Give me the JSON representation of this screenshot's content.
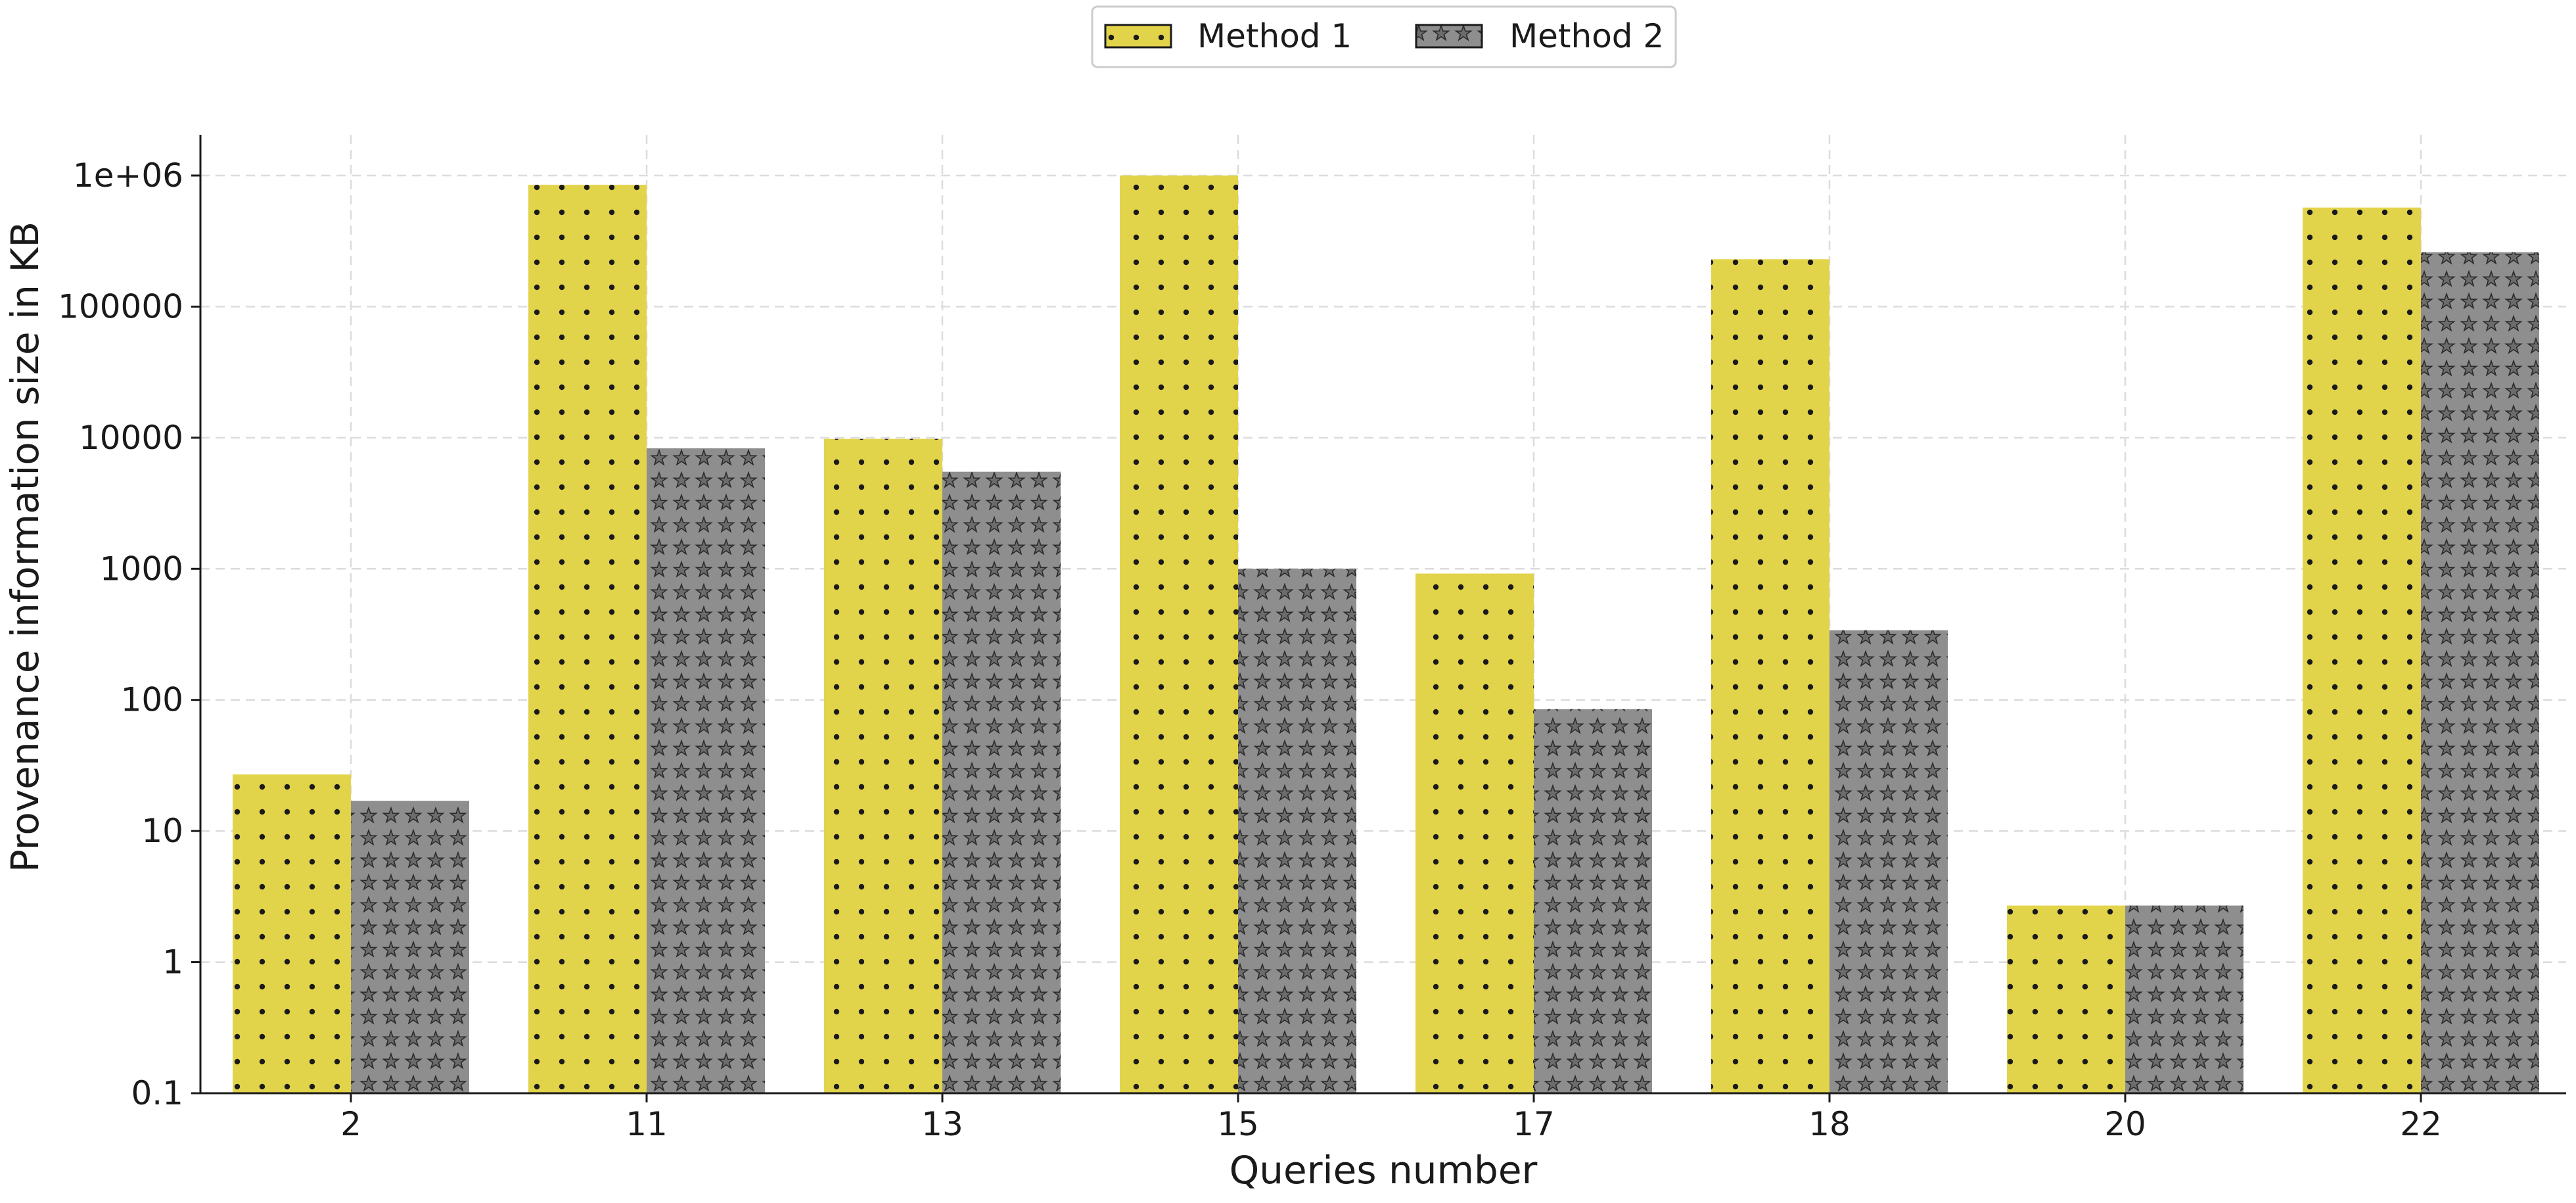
{
  "chart_data": {
    "type": "bar",
    "title": "",
    "xlabel": "Queries number",
    "ylabel": "Provenance information size in KB",
    "categories": [
      "2",
      "11",
      "13",
      "15",
      "17",
      "18",
      "20",
      "22"
    ],
    "series": [
      {
        "name": "Method 1",
        "values": [
          27,
          850000,
          9800,
          1000000,
          920,
          230000,
          2.7,
          570000
        ],
        "color": "#e2d44a",
        "pattern": "dots"
      },
      {
        "name": "Method 2",
        "values": [
          17,
          8300,
          5500,
          1000,
          85,
          340,
          2.7,
          260000
        ],
        "color": "#8e8e8e",
        "pattern": "stars"
      }
    ],
    "yscale": "log",
    "ylim": [
      0.1,
      2000000
    ],
    "yticks": [
      0.1,
      1,
      10,
      100,
      1000,
      10000,
      100000,
      1000000
    ],
    "ytick_labels": [
      "0.1",
      "1",
      "10",
      "100",
      "1000",
      "10000",
      "100000",
      "1e+06"
    ],
    "grid": true,
    "legend_position": "top-center"
  }
}
